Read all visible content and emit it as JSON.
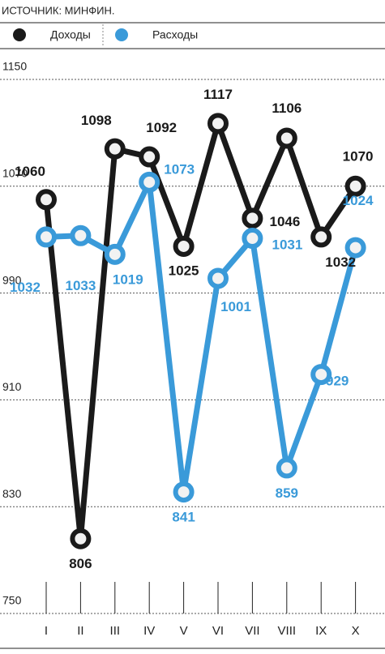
{
  "chart_data": {
    "type": "line",
    "source": "ИСТОЧНИК: МИНФИН.",
    "categories": [
      "I",
      "II",
      "III",
      "IV",
      "V",
      "VI",
      "VII",
      "VIII",
      "IX",
      "X"
    ],
    "series": [
      {
        "name": "Доходы",
        "color": "#1a1a1a",
        "values": [
          1060,
          806,
          1098,
          1092,
          1025,
          1117,
          1046,
          1106,
          1032,
          1070
        ]
      },
      {
        "name": "Расходы",
        "color": "#3a9ad9",
        "values": [
          1032,
          1033,
          1019,
          1073,
          841,
          1001,
          1031,
          859,
          929,
          1024
        ]
      }
    ],
    "ylim": [
      750,
      1150
    ],
    "yticks": [
      750,
      830,
      910,
      990,
      1070,
      1150
    ],
    "grid": true
  }
}
